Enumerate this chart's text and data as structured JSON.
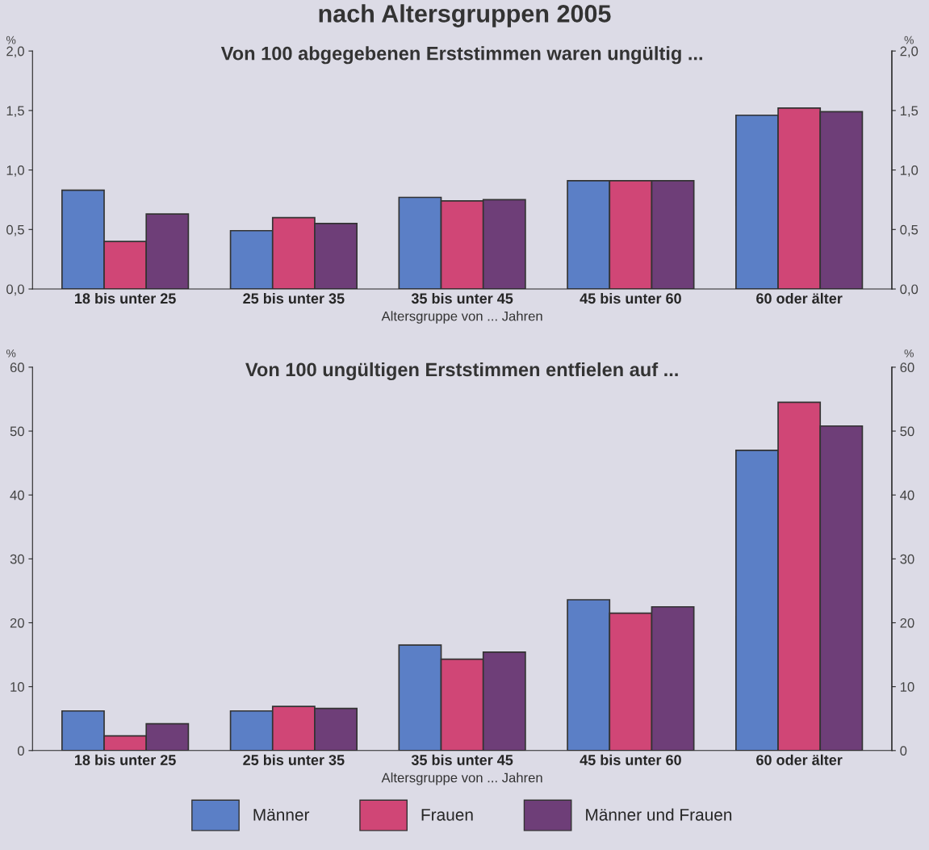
{
  "chart_data": [
    {
      "type": "bar",
      "title": "nach Altersgruppen 2005",
      "subtitle": "Von 100 abgegebenen Erststimmen waren ungültig ...",
      "xlabel": "Altersgruppe von ... Jahren",
      "ylabel": "%",
      "y2label": "%",
      "categories": [
        "18 bis unter 25",
        "25 bis unter 35",
        "35 bis unter 45",
        "45 bis unter 60",
        "60 oder älter"
      ],
      "series": [
        {
          "color": "#5b7fc6",
          "values": [
            0.83,
            0.49,
            0.77,
            0.91,
            1.46
          ]
        },
        {
          "color": "#d04676",
          "values": [
            0.4,
            0.6,
            0.74,
            0.91,
            1.52
          ]
        },
        {
          "color": "#6e3e78",
          "values": [
            0.63,
            0.55,
            0.75,
            0.91,
            1.49
          ]
        }
      ],
      "ylim": [
        0,
        2
      ],
      "yticks": [
        {
          "value": 0,
          "label": "0,0"
        },
        {
          "value": 0.5,
          "label": "0,5"
        },
        {
          "value": 1,
          "label": "1,0"
        },
        {
          "value": 1.5,
          "label": "1,5"
        },
        {
          "value": 2,
          "label": "2,0"
        }
      ],
      "y2lim": [
        0,
        2
      ],
      "y2ticks": [
        {
          "value": 0,
          "label": "0,0"
        },
        {
          "value": 0.5,
          "label": "0,5"
        },
        {
          "value": 1,
          "label": "1,0"
        },
        {
          "value": 1.5,
          "label": "1,5"
        },
        {
          "value": 2,
          "label": "2,0"
        }
      ],
      "grid": false,
      "legend": false
    },
    {
      "type": "bar",
      "title": "Von 100 ungültigen Erststimmen entfielen auf ...",
      "xlabel": "Altersgruppe von ... Jahren",
      "ylabel": "%",
      "y2label": "%",
      "categories": [
        "18 bis unter 25",
        "25 bis unter 35",
        "35 bis unter 45",
        "45 bis unter 60",
        "60 oder älter"
      ],
      "series": [
        {
          "name": "Männer",
          "color": "#5b7fc6",
          "values": [
            6.2,
            6.2,
            16.5,
            23.6,
            47.0
          ]
        },
        {
          "name": "Frauen",
          "color": "#d04676",
          "values": [
            2.3,
            6.9,
            14.3,
            21.5,
            54.5
          ]
        },
        {
          "name": "Männer und Frauen",
          "color": "#6e3e78",
          "values": [
            4.2,
            6.6,
            15.4,
            22.5,
            50.8
          ]
        }
      ],
      "ylim": [
        0,
        60
      ],
      "yticks": [
        0,
        10,
        20,
        30,
        40,
        50,
        60
      ],
      "y2lim": [
        0,
        60
      ],
      "y2ticks": [
        0,
        10,
        20,
        30,
        40,
        50,
        60
      ],
      "grid": false,
      "legend": "bottom"
    }
  ]
}
